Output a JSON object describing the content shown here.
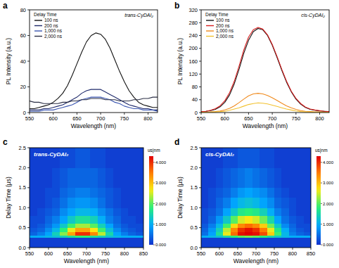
{
  "chart_data": [
    {
      "type": "line",
      "panel_label": "a",
      "annotation": "trans-CyDAI₂",
      "xlabel": "Wavelength (nm)",
      "ylabel": "PL Intensity (a.u.)",
      "legend_title": "Delay Time",
      "legend": "upper left",
      "grid": false,
      "xlim": [
        550,
        820
      ],
      "xticks": [
        550,
        600,
        650,
        700,
        750,
        800
      ],
      "ylim": [
        0,
        80
      ],
      "yticks": [
        0,
        20,
        40,
        60,
        80
      ],
      "x": [
        550,
        560,
        570,
        580,
        590,
        600,
        610,
        620,
        630,
        640,
        650,
        660,
        670,
        680,
        690,
        700,
        710,
        720,
        730,
        740,
        750,
        760,
        770,
        780,
        790,
        800,
        810,
        820
      ],
      "series": [
        {
          "name": "100 ns",
          "color": "#111111",
          "values": [
            3,
            3,
            4,
            5,
            6,
            8,
            11,
            15,
            21,
            29,
            38,
            47,
            55,
            60,
            62,
            61,
            57,
            50,
            41,
            32,
            24,
            17,
            12,
            8,
            6,
            5,
            4,
            4
          ]
        },
        {
          "name": "200 ns",
          "color": "#1f2a6b",
          "values": [
            2,
            2,
            2,
            3,
            3,
            4,
            5,
            6,
            8,
            10,
            12,
            15,
            17,
            18,
            18,
            18,
            16,
            14,
            12,
            10,
            8,
            6,
            5,
            4,
            3,
            3,
            2,
            2
          ]
        },
        {
          "name": "1,000 ns",
          "color": "#3a55b0",
          "values": [
            1,
            1,
            1,
            2,
            2,
            2,
            3,
            4,
            5,
            6,
            8,
            10,
            11,
            12,
            12,
            12,
            11,
            10,
            8,
            7,
            5,
            4,
            3,
            3,
            2,
            2,
            2,
            1
          ]
        },
        {
          "name": "2,000 ns",
          "color": "#2b2f45",
          "values": [
            9,
            8,
            8,
            7,
            7,
            7,
            7,
            8,
            8,
            9,
            9,
            10,
            10,
            11,
            11,
            11,
            10,
            10,
            10,
            9,
            9,
            9,
            10,
            10,
            11,
            11,
            12,
            12
          ]
        }
      ]
    },
    {
      "type": "line",
      "panel_label": "b",
      "annotation": "cis-CyDAI₂",
      "xlabel": "Wavelength (nm)",
      "ylabel": "PL Intensity (a.u.)",
      "legend_title": "Delay Time",
      "legend": "upper left",
      "grid": false,
      "xlim": [
        550,
        820
      ],
      "xticks": [
        550,
        600,
        650,
        700,
        750,
        800
      ],
      "ylim": [
        0,
        320
      ],
      "yticks": [
        0,
        40,
        80,
        120,
        160,
        200,
        240,
        280,
        320
      ],
      "x": [
        550,
        560,
        570,
        580,
        590,
        600,
        610,
        620,
        630,
        640,
        650,
        660,
        670,
        680,
        690,
        700,
        710,
        720,
        730,
        740,
        750,
        760,
        770,
        780,
        790,
        800,
        810,
        820
      ],
      "series": [
        {
          "name": "100 ns",
          "color": "#111111",
          "values": [
            3,
            4,
            6,
            10,
            18,
            32,
            55,
            90,
            135,
            185,
            225,
            252,
            262,
            258,
            240,
            210,
            172,
            132,
            95,
            65,
            42,
            26,
            16,
            10,
            7,
            5,
            4,
            3
          ]
        },
        {
          "name": "200 ns",
          "color": "#d81e1e",
          "values": [
            3,
            4,
            7,
            12,
            21,
            37,
            62,
            98,
            145,
            195,
            235,
            258,
            265,
            260,
            242,
            212,
            175,
            135,
            98,
            67,
            44,
            28,
            17,
            11,
            8,
            6,
            4,
            3
          ]
        },
        {
          "name": "1,000 ns",
          "color": "#f08a1c",
          "values": [
            1,
            1,
            2,
            3,
            5,
            8,
            13,
            21,
            31,
            42,
            52,
            58,
            60,
            58,
            53,
            46,
            38,
            29,
            21,
            15,
            10,
            6,
            4,
            3,
            2,
            2,
            1,
            1
          ]
        },
        {
          "name": "2,000 ns",
          "color": "#f2c230",
          "values": [
            1,
            1,
            1,
            2,
            3,
            4,
            7,
            11,
            15,
            20,
            25,
            28,
            30,
            29,
            27,
            23,
            19,
            15,
            11,
            8,
            5,
            3,
            2,
            2,
            1,
            1,
            1,
            1
          ]
        }
      ]
    },
    {
      "type": "heatmap",
      "panel_label": "c",
      "annotation": "trans-CyDAI₂",
      "xlabel": "Wavelength (nm)",
      "ylabel": "Delay Time (μs)",
      "xlim": [
        550,
        850
      ],
      "xticks": [
        550,
        600,
        650,
        700,
        750,
        800,
        850
      ],
      "ylim": [
        0,
        2.5
      ],
      "yticks": [
        {
          "value": 0,
          "label": "0.0"
        },
        {
          "value": 0.5,
          "label": "0.5"
        },
        {
          "value": 1,
          "label": "1.0"
        },
        {
          "value": 1.5,
          "label": "1.5"
        },
        {
          "value": 2,
          "label": "2.0"
        },
        {
          "value": 2.5,
          "label": "2.5"
        }
      ],
      "x_edges": [
        550,
        570,
        590,
        610,
        630,
        650,
        670,
        690,
        710,
        730,
        750,
        770,
        790,
        810,
        830,
        850
      ],
      "y_edges": [
        0,
        0.25,
        0.3,
        0.4,
        0.5,
        0.6,
        0.8,
        1.0,
        1.25,
        1.5,
        2.0,
        2.5
      ],
      "cells": [
        [
          0.1,
          0.1,
          0.1,
          0.1,
          0.1,
          0.1,
          0.1,
          0.1,
          0.1,
          0.1,
          0.1,
          0.1,
          0.1,
          0.1,
          0.1
        ],
        [
          1.0,
          1.0,
          1.1,
          1.2,
          1.4,
          1.6,
          1.8,
          1.8,
          1.6,
          1.4,
          1.2,
          1.1,
          1.0,
          1.0,
          1.0
        ],
        [
          0.4,
          0.6,
          0.9,
          1.4,
          2.2,
          3.2,
          4.0,
          4.0,
          3.4,
          2.4,
          1.5,
          0.9,
          0.6,
          0.4,
          0.3
        ],
        [
          0.3,
          0.4,
          0.7,
          1.1,
          1.8,
          2.6,
          3.2,
          3.2,
          2.7,
          1.9,
          1.2,
          0.7,
          0.4,
          0.3,
          0.2
        ],
        [
          0.2,
          0.3,
          0.5,
          0.8,
          1.3,
          1.9,
          2.3,
          2.3,
          2.0,
          1.4,
          0.9,
          0.5,
          0.3,
          0.2,
          0.2
        ],
        [
          0.2,
          0.2,
          0.4,
          0.6,
          0.9,
          1.3,
          1.6,
          1.6,
          1.4,
          1.0,
          0.6,
          0.4,
          0.2,
          0.2,
          0.1
        ],
        [
          0.1,
          0.2,
          0.3,
          0.4,
          0.7,
          0.9,
          1.1,
          1.1,
          1.0,
          0.7,
          0.5,
          0.3,
          0.2,
          0.1,
          0.1
        ],
        [
          0.1,
          0.1,
          0.2,
          0.3,
          0.5,
          0.7,
          0.8,
          0.8,
          0.7,
          0.5,
          0.3,
          0.2,
          0.1,
          0.1,
          0.1
        ],
        [
          0.1,
          0.1,
          0.2,
          0.2,
          0.4,
          0.5,
          0.6,
          0.6,
          0.5,
          0.4,
          0.3,
          0.2,
          0.1,
          0.1,
          0.1
        ],
        [
          0.1,
          0.1,
          0.1,
          0.2,
          0.3,
          0.4,
          0.4,
          0.4,
          0.4,
          0.3,
          0.2,
          0.1,
          0.1,
          0.1,
          0.1
        ],
        [
          0.1,
          0.1,
          0.1,
          0.1,
          0.2,
          0.2,
          0.3,
          0.3,
          0.2,
          0.2,
          0.1,
          0.1,
          0.1,
          0.1,
          0.1
        ]
      ],
      "colorbar_label": "us|nm",
      "color_range": [
        0,
        4.3
      ],
      "color_ticks": [
        {
          "value": 0,
          "label": "0.000"
        },
        {
          "value": 1,
          "label": "1.000"
        },
        {
          "value": 2,
          "label": "2.000"
        },
        {
          "value": 3,
          "label": "3.000"
        },
        {
          "value": 4,
          "label": "4.000"
        }
      ]
    },
    {
      "type": "heatmap",
      "panel_label": "d",
      "annotation": "cis-CyDAI₂",
      "xlabel": "Wavelength (nm)",
      "ylabel": "Delay Time (μs)",
      "xlim": [
        550,
        850
      ],
      "xticks": [
        550,
        600,
        650,
        700,
        750,
        800,
        850
      ],
      "ylim": [
        0,
        2.5
      ],
      "yticks": [
        {
          "value": 0,
          "label": "0.0"
        },
        {
          "value": 0.5,
          "label": "0.5"
        },
        {
          "value": 1,
          "label": "1.0"
        },
        {
          "value": 1.5,
          "label": "1.5"
        },
        {
          "value": 2,
          "label": "2.0"
        },
        {
          "value": 2.5,
          "label": "2.5"
        }
      ],
      "x_edges": [
        550,
        570,
        590,
        610,
        630,
        650,
        670,
        690,
        710,
        730,
        750,
        770,
        790,
        810,
        830,
        850
      ],
      "y_edges": [
        0,
        0.25,
        0.3,
        0.4,
        0.5,
        0.6,
        0.8,
        1.0,
        1.25,
        1.5,
        2.0,
        2.5
      ],
      "cells": [
        [
          0.1,
          0.1,
          0.1,
          0.1,
          0.1,
          0.1,
          0.1,
          0.1,
          0.1,
          0.1,
          0.1,
          0.1,
          0.1,
          0.1,
          0.1
        ],
        [
          1.0,
          1.1,
          1.2,
          1.5,
          1.8,
          2.0,
          2.1,
          2.0,
          1.8,
          1.5,
          1.3,
          1.1,
          1.0,
          1.0,
          1.0
        ],
        [
          0.5,
          0.9,
          1.6,
          2.6,
          3.6,
          4.2,
          4.3,
          4.2,
          3.8,
          2.9,
          1.9,
          1.1,
          0.6,
          0.4,
          0.3
        ],
        [
          0.4,
          0.8,
          1.4,
          2.4,
          3.4,
          4.0,
          4.2,
          4.0,
          3.5,
          2.6,
          1.7,
          1.0,
          0.5,
          0.3,
          0.2
        ],
        [
          0.3,
          0.6,
          1.1,
          1.9,
          2.8,
          3.4,
          3.6,
          3.4,
          2.9,
          2.1,
          1.3,
          0.7,
          0.4,
          0.2,
          0.2
        ],
        [
          0.2,
          0.4,
          0.8,
          1.3,
          2.0,
          2.5,
          2.7,
          2.5,
          2.1,
          1.5,
          0.9,
          0.5,
          0.3,
          0.2,
          0.1
        ],
        [
          0.2,
          0.3,
          0.5,
          0.9,
          1.3,
          1.7,
          1.8,
          1.7,
          1.4,
          1.0,
          0.6,
          0.4,
          0.2,
          0.1,
          0.1
        ],
        [
          0.1,
          0.2,
          0.4,
          0.6,
          0.9,
          1.1,
          1.2,
          1.1,
          0.9,
          0.7,
          0.4,
          0.3,
          0.2,
          0.1,
          0.1
        ],
        [
          0.1,
          0.2,
          0.3,
          0.4,
          0.6,
          0.8,
          0.9,
          0.8,
          0.7,
          0.5,
          0.3,
          0.2,
          0.1,
          0.1,
          0.1
        ],
        [
          0.1,
          0.1,
          0.2,
          0.3,
          0.4,
          0.5,
          0.6,
          0.5,
          0.4,
          0.3,
          0.2,
          0.1,
          0.1,
          0.1,
          0.1
        ],
        [
          0.1,
          0.1,
          0.1,
          0.2,
          0.2,
          0.3,
          0.3,
          0.3,
          0.2,
          0.2,
          0.1,
          0.1,
          0.1,
          0.1,
          0.1
        ]
      ],
      "colorbar_label": "us|nm",
      "color_range": [
        0,
        4.3
      ],
      "color_ticks": [
        {
          "value": 0,
          "label": "0.000"
        },
        {
          "value": 1,
          "label": "1.000"
        },
        {
          "value": 2,
          "label": "2.000"
        },
        {
          "value": 3,
          "label": "3.000"
        },
        {
          "value": 4,
          "label": "4.000"
        }
      ]
    }
  ]
}
